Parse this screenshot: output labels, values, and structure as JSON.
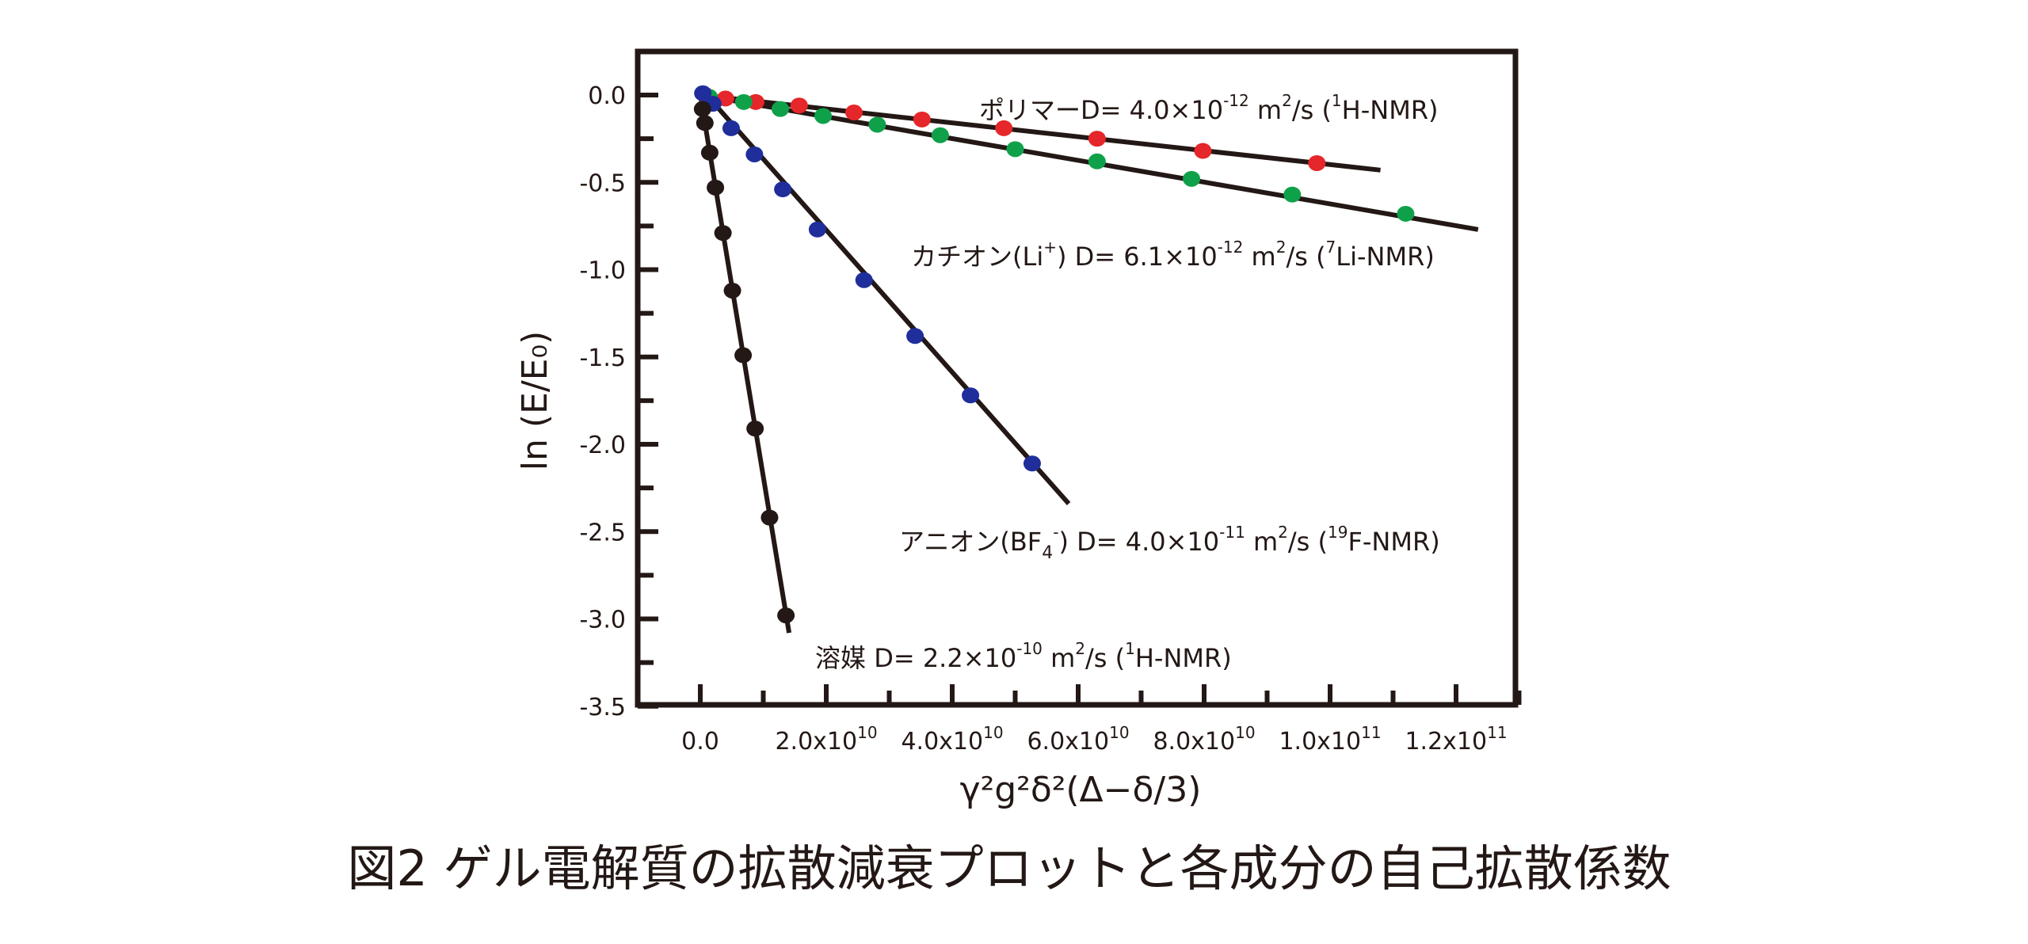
{
  "chart_data": {
    "type": "scatter",
    "title": "",
    "caption": "図2  ゲル電解質の拡散減衰プロットと各成分の自己拡散係数",
    "xlabel": "γ²g²δ²(Δ−δ/3)",
    "ylabel": "ln (E/E₀)",
    "xlim": [
      -13000000000.0,
      130000000000.0
    ],
    "ylim": [
      -3.5,
      0.25
    ],
    "x_ticks": [
      0,
      20000000000.0,
      40000000000.0,
      60000000000.0,
      80000000000.0,
      100000000000.0,
      120000000000.0
    ],
    "x_tick_labels": [
      {
        "base": "0.0",
        "exp": ""
      },
      {
        "base": "2.0x10",
        "exp": "10"
      },
      {
        "base": "4.0x10",
        "exp": "10"
      },
      {
        "base": "6.0x10",
        "exp": "10"
      },
      {
        "base": "8.0x10",
        "exp": "10"
      },
      {
        "base": "1.0x10",
        "exp": "11"
      },
      {
        "base": "1.2x10",
        "exp": "11"
      }
    ],
    "y_ticks": [
      0,
      -0.5,
      -1.0,
      -1.5,
      -2.0,
      -2.5,
      -3.0,
      -3.5
    ],
    "y_tick_labels": [
      "0.0",
      "-0.5",
      "-1.0",
      "-1.5",
      "-2.0",
      "-2.5",
      "-3.0",
      "-3.5"
    ],
    "grid": false,
    "series": [
      {
        "name": "ポリマー",
        "color": "#e5262a",
        "D": 4e-12,
        "x": [
          800000000.0,
          4000000000.0,
          8800000000.0,
          15700000000.0,
          24400000000.0,
          35200000000.0,
          48200000000.0,
          63000000000.0,
          79800000000.0,
          97900000000.0
        ],
        "y": [
          0.0,
          -0.02,
          -0.04,
          -0.06,
          -0.1,
          -0.14,
          -0.19,
          -0.25,
          -0.32,
          -0.39
        ],
        "fit": {
          "x": [
            0,
            108000000000.0
          ],
          "y": [
            0,
            -0.43
          ]
        },
        "label": {
          "name": "ポリマー",
          "d": "D= 4.0×10",
          "d_exp": "-12",
          "unit": " m",
          "unit_exp": "2",
          "unit_tail": "/s  (",
          "nuc_exp": "1",
          "nuc": "H-NMR)"
        }
      },
      {
        "name": "カチオン(Li⁺)",
        "color": "#0fa14a",
        "D": 6.1e-12,
        "x": [
          1400000000.0,
          6900000000.0,
          12700000000.0,
          19500000000.0,
          28100000000.0,
          38100000000.0,
          50000000000.0,
          63000000000.0,
          78000000000.0,
          94000000000.0,
          112000000000.0
        ],
        "y": [
          -0.01,
          -0.04,
          -0.08,
          -0.12,
          -0.17,
          -0.23,
          -0.31,
          -0.38,
          -0.48,
          -0.57,
          -0.68
        ],
        "fit": {
          "x": [
            0,
            123500000000.0
          ],
          "y": [
            0,
            -0.77
          ]
        },
        "label": {
          "name": "カチオン(Li",
          "name_sup": "+",
          "name_tail": ")  ",
          "d": "D= 6.1×10",
          "d_exp": "-12",
          "unit": " m",
          "unit_exp": "2",
          "unit_tail": "/s  (",
          "nuc_exp": "7",
          "nuc": "Li-NMR)"
        }
      },
      {
        "name": "アニオン(BF₄⁻)",
        "color": "#1f2e9b",
        "D": 4e-11,
        "x": [
          400000000.0,
          2000000000.0,
          4900000000.0,
          8600000000.0,
          13100000000.0,
          18600000000.0,
          26000000000.0,
          34100000000.0,
          42900000000.0,
          52700000000.0
        ],
        "y": [
          0.01,
          -0.05,
          -0.19,
          -0.34,
          -0.54,
          -0.77,
          -1.06,
          -1.38,
          -1.72,
          -2.11
        ],
        "fit": {
          "x": [
            1000000000.0,
            58500000000.0
          ],
          "y": [
            0,
            -2.34
          ]
        },
        "label": {
          "name": "アニオン(BF",
          "name_sub": "4",
          "name_sup": "-",
          "name_tail": ")  ",
          "d": "D= 4.0×10",
          "d_exp": "-11",
          "unit": " m",
          "unit_exp": "2",
          "unit_tail": "/s  (",
          "nuc_exp": "19",
          "nuc": "F-NMR)"
        }
      },
      {
        "name": "溶媒",
        "color": "#231815",
        "D": 2.2e-10,
        "x": [
          360000000.0,
          730000000.0,
          1500000000.0,
          2400000000.0,
          3600000000.0,
          5100000000.0,
          6800000000.0,
          8700000000.0,
          11000000000.0,
          13600000000.0
        ],
        "y": [
          -0.08,
          -0.16,
          -0.33,
          -0.53,
          -0.79,
          -1.12,
          -1.49,
          -1.91,
          -2.42,
          -2.98
        ],
        "fit": {
          "x": [
            0,
            14100000000.0
          ],
          "y": [
            0,
            -3.08
          ]
        },
        "label": {
          "name": "溶媒  ",
          "d": "D= 2.2×10",
          "d_exp": "-10",
          "unit": " m",
          "unit_exp": "2",
          "unit_tail": "/s (",
          "nuc_exp": "1",
          "nuc": "H-NMR)"
        }
      }
    ]
  }
}
